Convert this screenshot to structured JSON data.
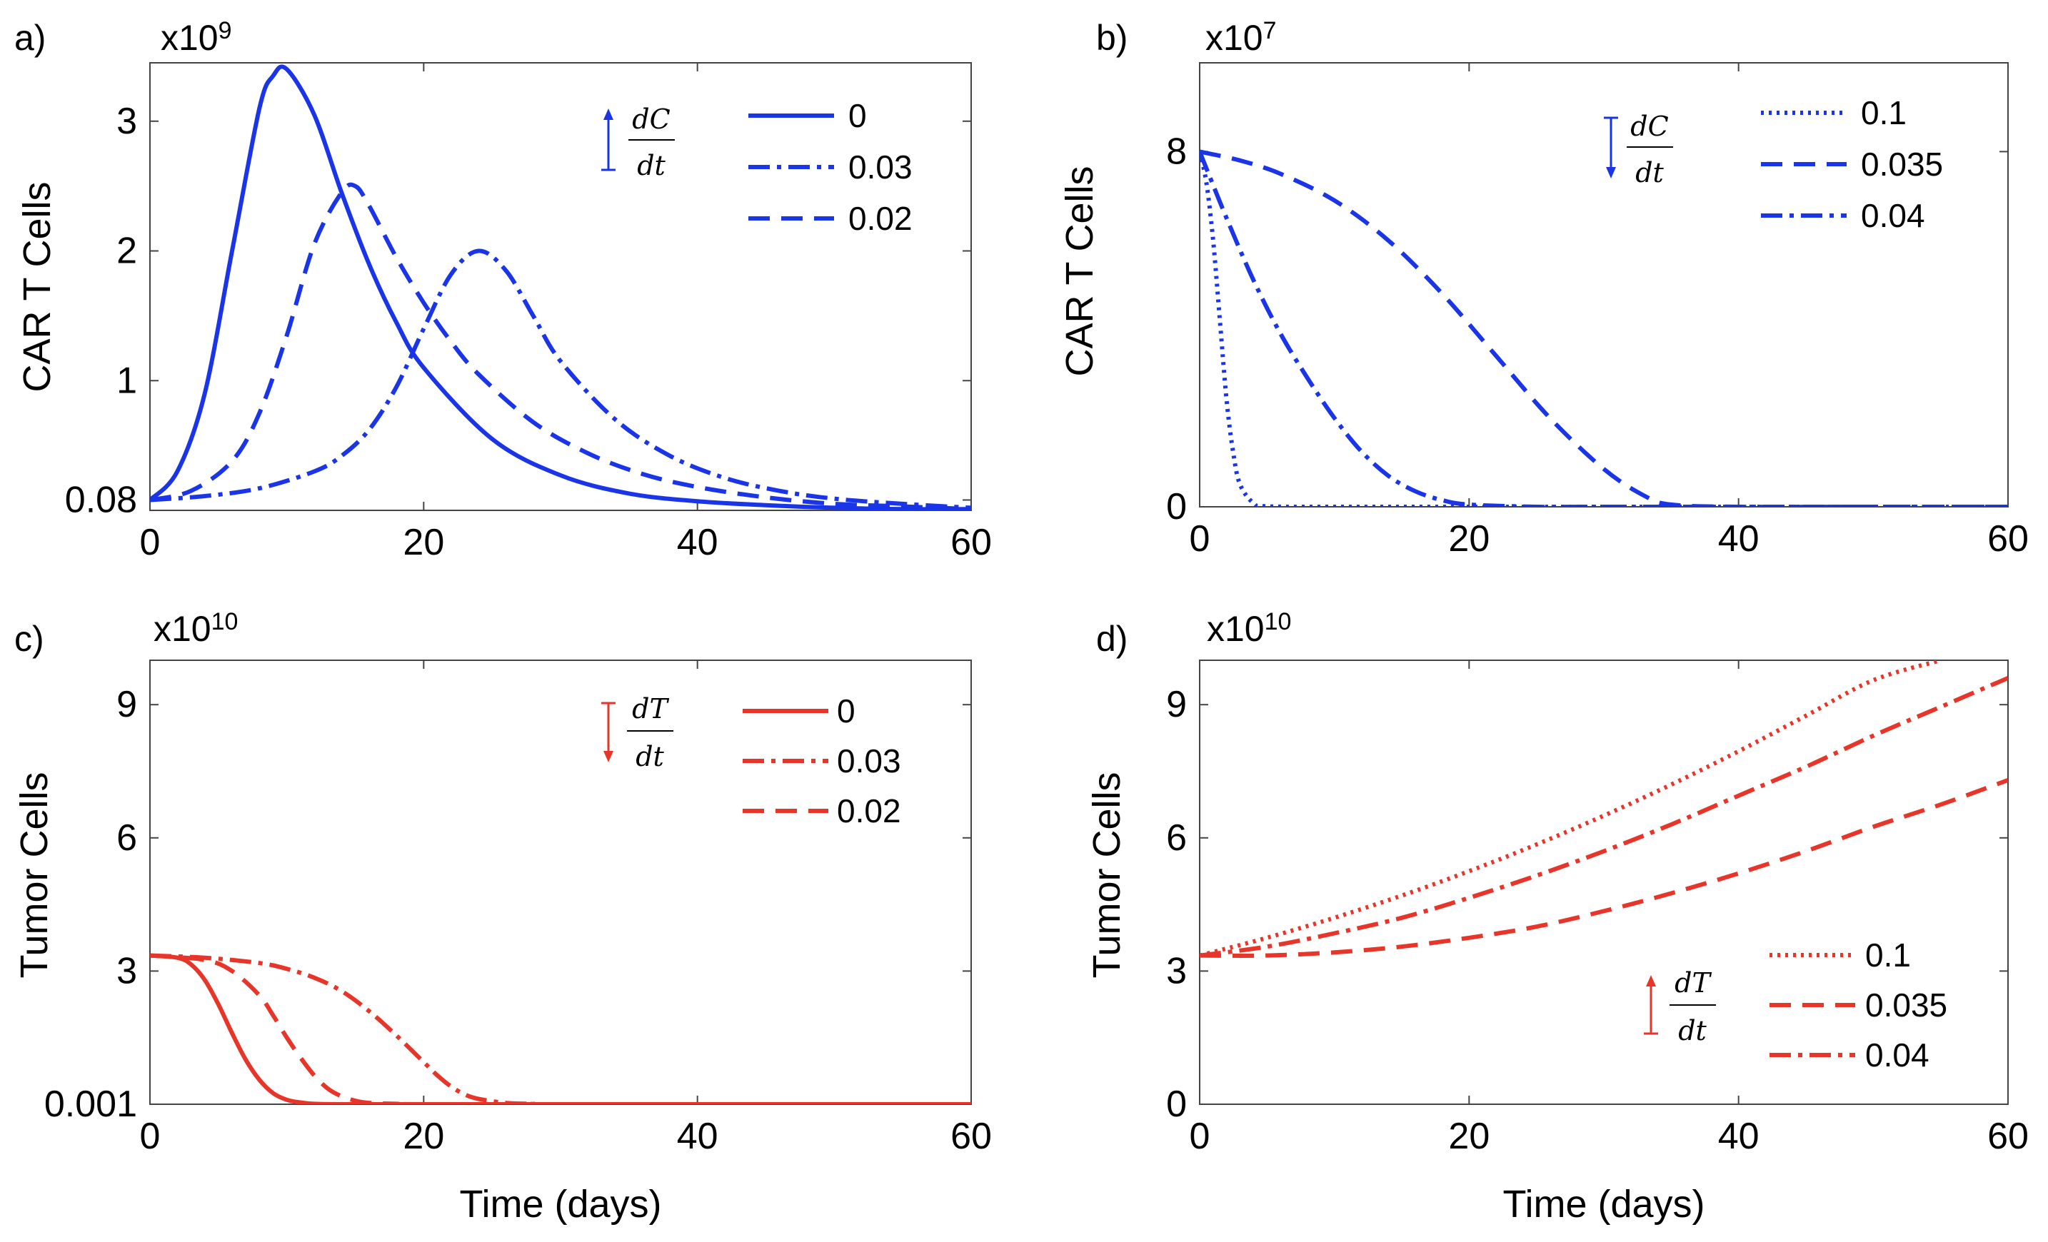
{
  "chart_data": [
    {
      "panel_label": "a)",
      "type": "line",
      "color": "#1a35e8",
      "scale_exponent_base": "x10",
      "scale_exponent_power": "9",
      "ylabel": "CAR T Cells",
      "xlabel": "",
      "xlim": [
        0,
        60
      ],
      "ylim": [
        0,
        3.45
      ],
      "xticks": [
        "0",
        "20",
        "40",
        "60"
      ],
      "yticks": [
        {
          "value": 0.08,
          "label": "0.08"
        },
        {
          "value": 1,
          "label": "1"
        },
        {
          "value": 2,
          "label": "2"
        },
        {
          "value": 3,
          "label": "3"
        }
      ],
      "legend_symbol": {
        "numerator": "dC",
        "denominator": "dt",
        "direction": "up"
      },
      "legend_placement": "top-right",
      "series": [
        {
          "name": "0",
          "style": "solid",
          "x": [
            0,
            2,
            4,
            6,
            8,
            9,
            10,
            12,
            14,
            16,
            18,
            20,
            25,
            30,
            35,
            40,
            45,
            50,
            55,
            60
          ],
          "values": [
            0.08,
            0.3,
            0.9,
            2.0,
            3.1,
            3.35,
            3.4,
            3.05,
            2.45,
            1.9,
            1.45,
            1.1,
            0.55,
            0.27,
            0.13,
            0.07,
            0.04,
            0.02,
            0.01,
            0.01
          ]
        },
        {
          "name": "0.03",
          "style": "dashdot",
          "x": [
            0,
            4,
            8,
            12,
            14,
            16,
            18,
            20,
            22,
            24,
            26,
            28,
            30,
            34,
            38,
            42,
            46,
            50,
            55,
            60
          ],
          "values": [
            0.08,
            0.11,
            0.17,
            0.3,
            0.42,
            0.62,
            0.95,
            1.4,
            1.82,
            2.0,
            1.85,
            1.5,
            1.15,
            0.7,
            0.42,
            0.25,
            0.15,
            0.09,
            0.05,
            0.02
          ]
        },
        {
          "name": "0.02",
          "style": "dashed",
          "x": [
            0,
            3,
            6,
            8,
            10,
            12,
            14,
            15,
            16,
            18,
            20,
            22,
            24,
            28,
            32,
            36,
            40,
            45,
            50,
            55,
            60
          ],
          "values": [
            0.08,
            0.15,
            0.38,
            0.75,
            1.35,
            2.05,
            2.45,
            2.5,
            2.35,
            1.95,
            1.6,
            1.3,
            1.05,
            0.68,
            0.44,
            0.28,
            0.18,
            0.1,
            0.05,
            0.03,
            0.01
          ]
        }
      ]
    },
    {
      "panel_label": "b)",
      "type": "line",
      "color": "#1a35e8",
      "scale_exponent_base": "x10",
      "scale_exponent_power": "7",
      "ylabel": "CAR T Cells",
      "xlabel": "",
      "xlim": [
        0,
        60
      ],
      "ylim": [
        0,
        10
      ],
      "xticks": [
        "0",
        "20",
        "40",
        "60"
      ],
      "yticks": [
        {
          "value": 0,
          "label": "0"
        },
        {
          "value": 8,
          "label": "8"
        }
      ],
      "legend_symbol": {
        "numerator": "dC",
        "denominator": "dt",
        "direction": "down"
      },
      "legend_placement": "top-right",
      "series": [
        {
          "name": "0.1",
          "style": "dotted",
          "x": [
            0,
            0.5,
            1,
            1.5,
            2,
            2.5,
            3,
            4,
            5,
            10,
            20,
            40,
            60
          ],
          "values": [
            8,
            7.3,
            6.0,
            4.2,
            2.4,
            1.2,
            0.5,
            0.08,
            0.01,
            0,
            0,
            0,
            0
          ]
        },
        {
          "name": "0.035",
          "style": "dashed",
          "x": [
            0,
            3,
            6,
            10,
            14,
            18,
            22,
            26,
            30,
            33,
            35,
            40,
            50,
            60
          ],
          "values": [
            8,
            7.8,
            7.5,
            6.9,
            6.0,
            4.8,
            3.4,
            2.0,
            0.85,
            0.25,
            0.05,
            0,
            0,
            0
          ]
        },
        {
          "name": "0.04",
          "style": "dashdot",
          "x": [
            0,
            2,
            4,
            6,
            8,
            10,
            12,
            14,
            16,
            18,
            20,
            25,
            30,
            60
          ],
          "values": [
            8,
            6.5,
            5.1,
            3.9,
            2.9,
            2.0,
            1.25,
            0.7,
            0.35,
            0.15,
            0.05,
            0,
            0,
            0
          ]
        }
      ]
    },
    {
      "panel_label": "c)",
      "type": "line",
      "color": "#e8352a",
      "scale_exponent_base": "x10",
      "scale_exponent_power": "10",
      "ylabel": "Tumor Cells",
      "xlabel": "Time (days)",
      "xlim": [
        0,
        60
      ],
      "ylim": [
        0,
        10
      ],
      "xticks": [
        "0",
        "20",
        "40",
        "60"
      ],
      "yticks": [
        {
          "value": 0.001,
          "label": "0.001"
        },
        {
          "value": 3,
          "label": "3"
        },
        {
          "value": 6,
          "label": "6"
        },
        {
          "value": 9,
          "label": "9"
        }
      ],
      "legend_symbol": {
        "numerator": "dT",
        "denominator": "dt",
        "direction": "down"
      },
      "legend_placement": "top-right",
      "series": [
        {
          "name": "0",
          "style": "solid",
          "x": [
            0,
            2,
            3,
            4,
            5,
            6,
            7,
            8,
            9,
            10,
            11,
            12,
            14,
            20,
            60
          ],
          "values": [
            3.35,
            3.3,
            3.15,
            2.8,
            2.25,
            1.6,
            1.0,
            0.55,
            0.25,
            0.1,
            0.04,
            0.01,
            0,
            0,
            0
          ]
        },
        {
          "name": "0.03",
          "style": "dashdot",
          "x": [
            0,
            4,
            8,
            10,
            12,
            14,
            16,
            18,
            20,
            21,
            22,
            23,
            24,
            26,
            28,
            30,
            60
          ],
          "values": [
            3.35,
            3.3,
            3.18,
            3.05,
            2.85,
            2.55,
            2.1,
            1.55,
            0.95,
            0.65,
            0.4,
            0.22,
            0.12,
            0.03,
            0.01,
            0,
            0
          ]
        },
        {
          "name": "0.02",
          "style": "dashed",
          "x": [
            0,
            4,
            6,
            8,
            9,
            10,
            11,
            12,
            13,
            14,
            15,
            16,
            18,
            22,
            60
          ],
          "values": [
            3.35,
            3.25,
            3.0,
            2.45,
            2.0,
            1.5,
            1.05,
            0.65,
            0.35,
            0.18,
            0.08,
            0.03,
            0.01,
            0,
            0
          ]
        }
      ]
    },
    {
      "panel_label": "d)",
      "type": "line",
      "color": "#e8352a",
      "scale_exponent_base": "x10",
      "scale_exponent_power": "10",
      "ylabel": "Tumor Cells",
      "xlabel": "Time (days)",
      "xlim": [
        0,
        60
      ],
      "ylim": [
        0,
        10
      ],
      "xticks": [
        "0",
        "20",
        "40",
        "60"
      ],
      "yticks": [
        {
          "value": 0,
          "label": "0"
        },
        {
          "value": 3,
          "label": "3"
        },
        {
          "value": 6,
          "label": "6"
        },
        {
          "value": 9,
          "label": "9"
        }
      ],
      "legend_symbol": {
        "numerator": "dT",
        "denominator": "dt",
        "direction": "up"
      },
      "legend_placement": "bottom-right",
      "series": [
        {
          "name": "0.1",
          "style": "dotted",
          "x": [
            0,
            5,
            10,
            15,
            20,
            25,
            30,
            35,
            40,
            45,
            50,
            55
          ],
          "values": [
            3.35,
            3.75,
            4.2,
            4.7,
            5.25,
            5.85,
            6.5,
            7.2,
            7.95,
            8.75,
            9.55,
            10.0
          ]
        },
        {
          "name": "0.035",
          "style": "dashed",
          "x": [
            0,
            5,
            10,
            15,
            20,
            25,
            30,
            35,
            40,
            45,
            50,
            55,
            60
          ],
          "values": [
            3.35,
            3.35,
            3.42,
            3.55,
            3.75,
            4.0,
            4.35,
            4.75,
            5.2,
            5.7,
            6.25,
            6.75,
            7.3
          ]
        },
        {
          "name": "0.04",
          "style": "dashdot",
          "x": [
            0,
            5,
            10,
            15,
            20,
            25,
            30,
            35,
            40,
            45,
            50,
            55,
            60
          ],
          "values": [
            3.35,
            3.55,
            3.85,
            4.2,
            4.65,
            5.15,
            5.7,
            6.3,
            6.95,
            7.6,
            8.3,
            8.95,
            9.6
          ]
        }
      ]
    }
  ]
}
